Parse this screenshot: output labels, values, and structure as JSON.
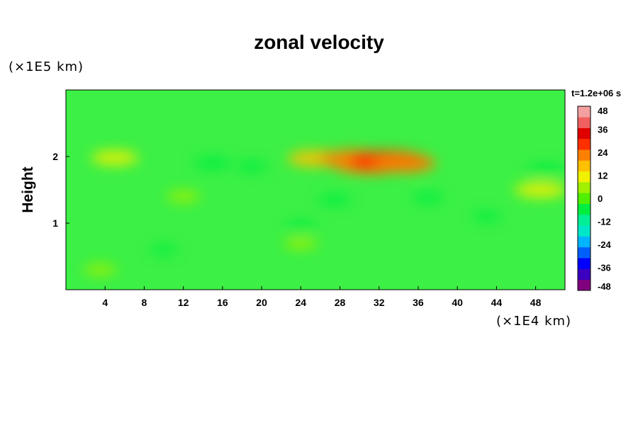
{
  "chart_data": {
    "type": "heatmap",
    "title": "zonal velocity",
    "ylabel": "Height",
    "xlabel": "",
    "x_unit_label": "(×1E4 km)",
    "y_unit_label": "(×1E5 km)",
    "time_label": "t=1.2e+06 s",
    "xlim": [
      0,
      51
    ],
    "ylim": [
      0,
      3
    ],
    "x_ticks": [
      4,
      8,
      12,
      16,
      20,
      24,
      28,
      32,
      36,
      40,
      44,
      48
    ],
    "y_ticks": [
      1,
      2
    ],
    "colorbar": {
      "range": [
        -48,
        48
      ],
      "ticks": [
        48,
        36,
        24,
        12,
        0,
        -12,
        -24,
        -36,
        -48
      ],
      "colors": [
        "#800080",
        "#3b00c0",
        "#0000ff",
        "#0060ff",
        "#00b4ff",
        "#00e6c8",
        "#00ee96",
        "#00ee40",
        "#50f000",
        "#a0f000",
        "#f0f000",
        "#ffc000",
        "#ff8000",
        "#ff3000",
        "#e00000",
        "#f06060",
        "#f5a0a0"
      ]
    },
    "features": [
      {
        "x": 25.5,
        "y": 1.97,
        "value": 16
      },
      {
        "x": 29.5,
        "y": 1.96,
        "value": 22
      },
      {
        "x": 31.0,
        "y": 1.89,
        "value": 24
      },
      {
        "x": 33.0,
        "y": 1.93,
        "value": 26
      },
      {
        "x": 34.5,
        "y": 1.9,
        "value": 20
      },
      {
        "x": 5.0,
        "y": 1.98,
        "value": 12
      },
      {
        "x": 48.5,
        "y": 1.5,
        "value": 14
      },
      {
        "x": 12.0,
        "y": 1.4,
        "value": 6
      },
      {
        "x": 24.0,
        "y": 0.7,
        "value": 6
      },
      {
        "x": 3.5,
        "y": 0.3,
        "value": 6
      },
      {
        "x": 15.0,
        "y": 1.9,
        "value": -8
      },
      {
        "x": 19.0,
        "y": 1.85,
        "value": -5
      },
      {
        "x": 49.0,
        "y": 1.8,
        "value": -8
      },
      {
        "x": 27.5,
        "y": 1.35,
        "value": -6
      },
      {
        "x": 37.0,
        "y": 1.38,
        "value": -5
      },
      {
        "x": 43.0,
        "y": 1.1,
        "value": -4
      },
      {
        "x": 24.0,
        "y": 0.95,
        "value": -5
      },
      {
        "x": 10.0,
        "y": 0.6,
        "value": -3
      }
    ]
  }
}
